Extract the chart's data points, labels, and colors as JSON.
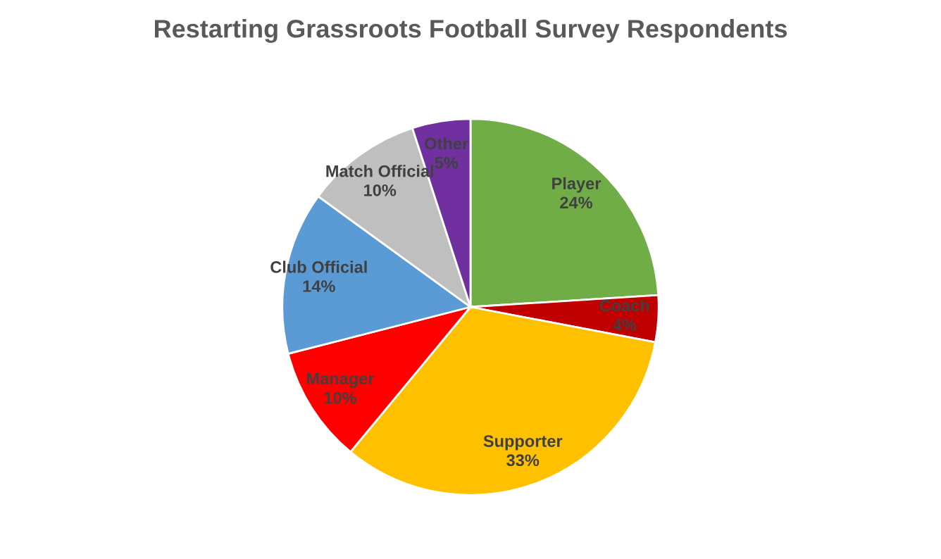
{
  "chart_data": {
    "type": "pie",
    "title": "Restarting Grassroots Football Survey Respondents",
    "categories": [
      "Player",
      "Coach",
      "Supporter",
      "Manager",
      "Club Official",
      "Match Official",
      "Other"
    ],
    "values": [
      24,
      4,
      33,
      10,
      14,
      10,
      5
    ],
    "value_labels": [
      "24%",
      "4%",
      "33%",
      "10%",
      "14%",
      "10%",
      "5%"
    ],
    "colors": [
      "#70ad47",
      "#c00000",
      "#ffc000",
      "#ff0000",
      "#5b9bd5",
      "#bfbfbf",
      "#7030a0"
    ],
    "legend": false
  }
}
